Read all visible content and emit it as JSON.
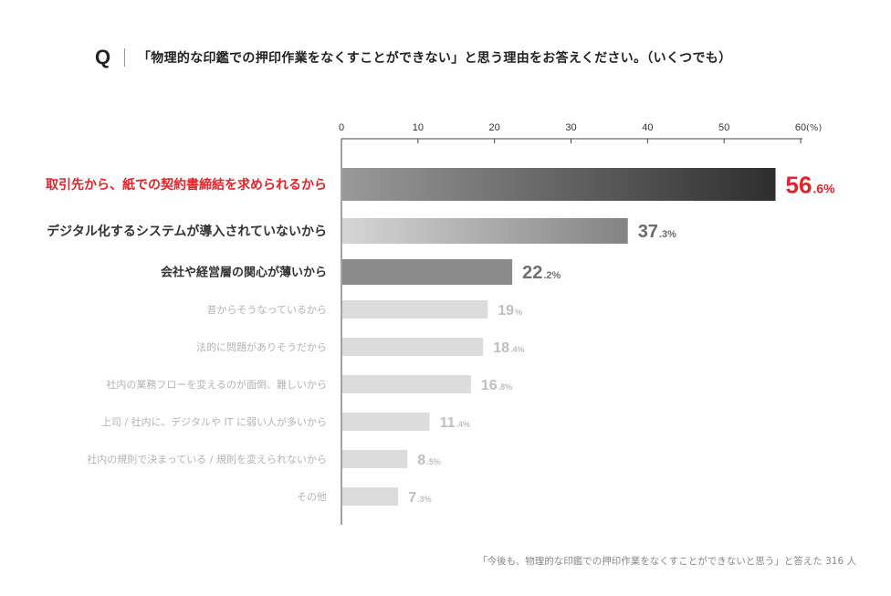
{
  "question": {
    "mark": "Q",
    "text": "「物理的な印鑑での押印作業をなくすことができない」と思う理由をお答えください。（いくつでも）"
  },
  "footnote": "「今後も、物理的な印鑑での押印作業をなくすことができないと思う」と答えた 316 人",
  "chart_data": {
    "type": "bar",
    "orientation": "horizontal",
    "unit": "(%)",
    "xlim": [
      0,
      60
    ],
    "xticks": [
      "0",
      "10",
      "20",
      "30",
      "40",
      "50",
      "60"
    ],
    "categories": [
      "取引先から、紙での契約書締結を求められるから",
      "デジタル化するシステムが導入されていないから",
      "会社や経営層の関心が薄いから",
      "昔からそうなっているから",
      "法的に問題がありそうだから",
      "社内の業務フローを変えるのが面倒、難しいから",
      "上司 / 社内に、デジタルや IT に弱い人が多いから",
      "社内の規則で決まっている / 規則を変えられないから",
      "その他"
    ],
    "values": [
      56.6,
      37.3,
      22.2,
      19,
      18.4,
      16.8,
      11.4,
      8.5,
      7.3
    ],
    "value_labels": [
      {
        "int": "56",
        "dec": ".6%"
      },
      {
        "int": "37",
        "dec": ".3%"
      },
      {
        "int": "22",
        "dec": ".2%"
      },
      {
        "int": "19",
        "dec": "%"
      },
      {
        "int": "18",
        "dec": ".4%"
      },
      {
        "int": "16",
        "dec": ".8%"
      },
      {
        "int": "11",
        "dec": ".4%"
      },
      {
        "int": "8",
        "dec": ".5%"
      },
      {
        "int": "7",
        "dec": ".3%"
      }
    ],
    "colors": {
      "highlight_text": "#e0242b",
      "rank1_bar": [
        "#9a9a9a",
        "#2e2e2e"
      ],
      "rank2_bar": [
        "#d6d6d6",
        "#838383"
      ],
      "rank3_bar": "#8a8a8a",
      "other_bar": "#dcdcdc",
      "dark_label": "#333333",
      "light_label": "#b3b3b3",
      "value_rank2": "#6a6a6a",
      "value_rank3": "#707070",
      "value_other": "#bfbfbf"
    }
  }
}
